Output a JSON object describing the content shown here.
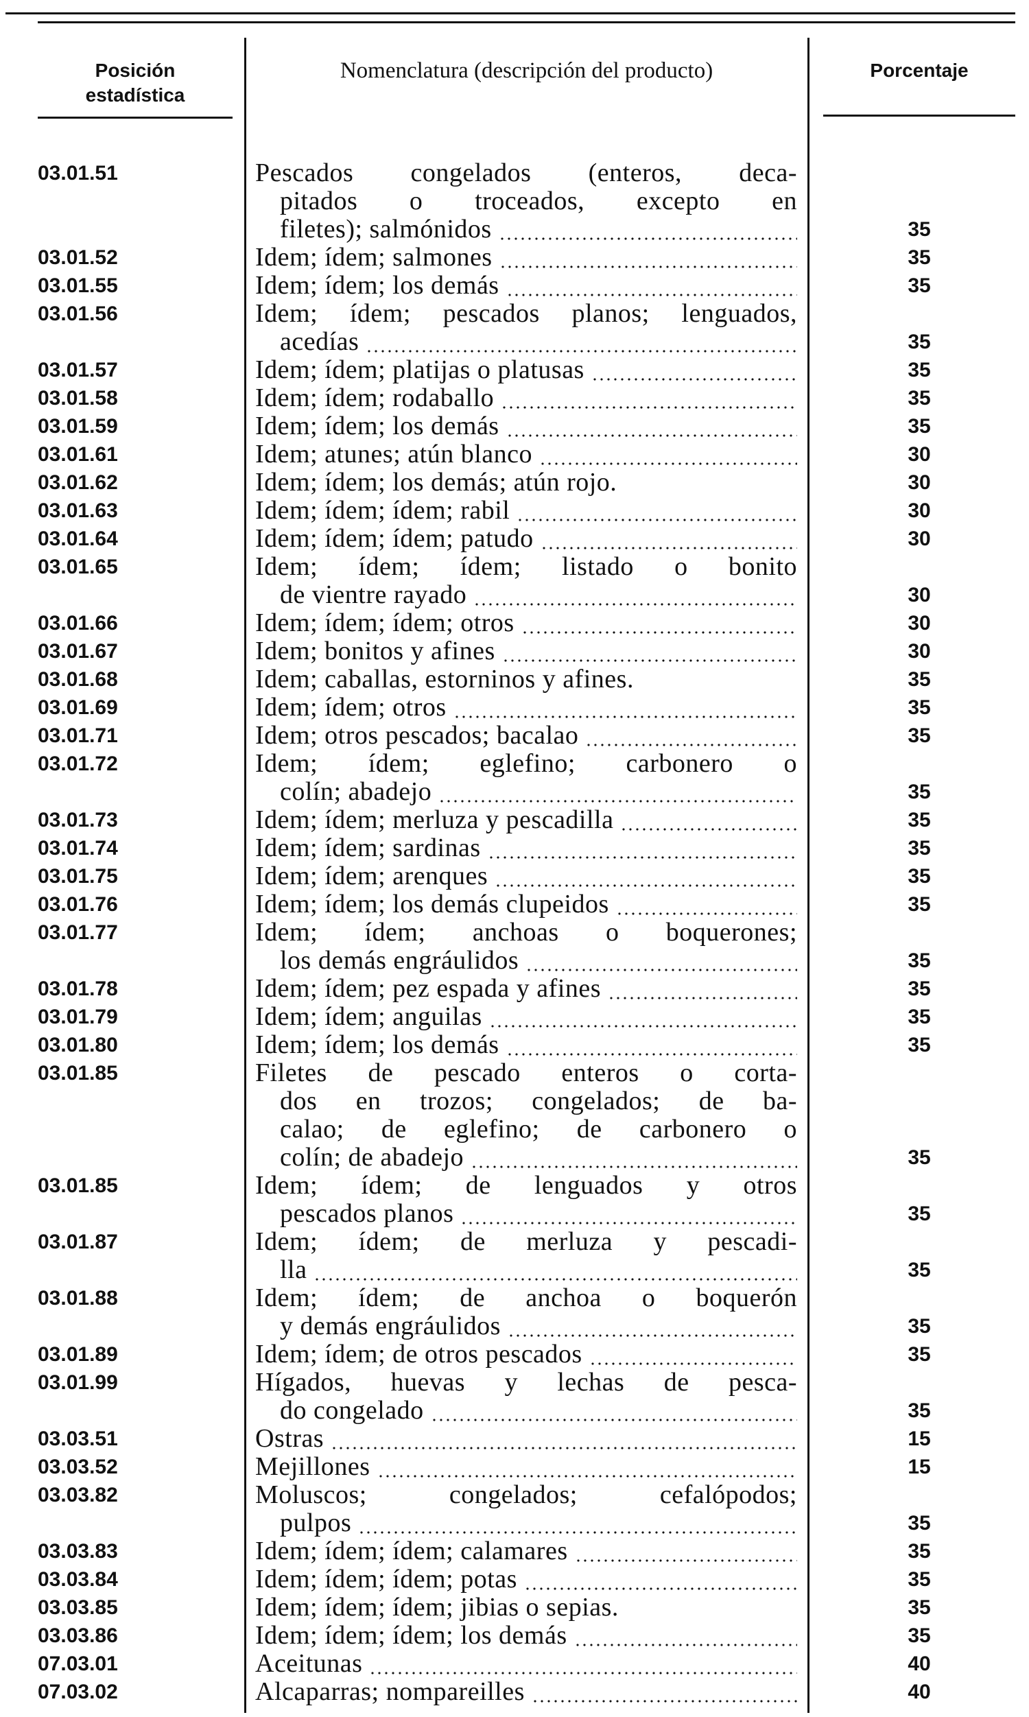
{
  "header": {
    "position": [
      "Posición",
      "estadística"
    ],
    "description": "Nomenclatura (descripción del producto)",
    "percentage": "Porcentaje"
  },
  "rows": [
    {
      "code": "03.01.51",
      "lines": [
        "Pescados congelados (enteros, deca-",
        "pitados o troceados, excepto en",
        "filetes); salmónidos"
      ],
      "percent": 35
    },
    {
      "code": "03.01.52",
      "lines": [
        "Idem; ídem; salmones"
      ],
      "percent": 35
    },
    {
      "code": "03.01.55",
      "lines": [
        "Idem; ídem; los demás"
      ],
      "percent": 35
    },
    {
      "code": "03.01.56",
      "lines": [
        "Idem; ídem; pescados planos; lenguados,",
        "acedías"
      ],
      "percent": 35
    },
    {
      "code": "03.01.57",
      "lines": [
        "Idem; ídem; platijas o platusas"
      ],
      "percent": 35
    },
    {
      "code": "03.01.58",
      "lines": [
        "Idem; ídem; rodaballo"
      ],
      "percent": 35
    },
    {
      "code": "03.01.59",
      "lines": [
        "Idem; ídem; los demás"
      ],
      "percent": 35
    },
    {
      "code": "03.01.61",
      "lines": [
        "Idem; atunes; atún blanco"
      ],
      "percent": 30
    },
    {
      "code": "03.01.62",
      "lines": [
        "Idem; ídem; los demás; atún rojo."
      ],
      "percent": 30
    },
    {
      "code": "03.01.63",
      "lines": [
        "Idem; ídem; ídem; rabil"
      ],
      "percent": 30
    },
    {
      "code": "03.01.64",
      "lines": [
        "Idem; ídem; ídem; patudo"
      ],
      "percent": 30
    },
    {
      "code": "03.01.65",
      "lines": [
        "Idem; ídem; ídem; listado o bonito",
        "de vientre rayado"
      ],
      "percent": 30
    },
    {
      "code": "03.01.66",
      "lines": [
        "Idem; ídem; ídem; otros"
      ],
      "percent": 30
    },
    {
      "code": "03.01.67",
      "lines": [
        "Idem; bonitos y afines"
      ],
      "percent": 30
    },
    {
      "code": "03.01.68",
      "lines": [
        "Idem; caballas, estorninos y afines."
      ],
      "percent": 35
    },
    {
      "code": "03.01.69",
      "lines": [
        "Idem; ídem; otros"
      ],
      "percent": 35
    },
    {
      "code": "03.01.71",
      "lines": [
        "Idem; otros pescados; bacalao"
      ],
      "percent": 35
    },
    {
      "code": "03.01.72",
      "lines": [
        "Idem; ídem; eglefino; carbonero o",
        "colín; abadejo"
      ],
      "percent": 35
    },
    {
      "code": "03.01.73",
      "lines": [
        "Idem; ídem; merluza y pescadilla"
      ],
      "percent": 35
    },
    {
      "code": "03.01.74",
      "lines": [
        "Idem; ídem; sardinas"
      ],
      "percent": 35
    },
    {
      "code": "03.01.75",
      "lines": [
        "Idem; ídem; arenques"
      ],
      "percent": 35
    },
    {
      "code": "03.01.76",
      "lines": [
        "Idem; ídem; los demás clupeidos"
      ],
      "percent": 35
    },
    {
      "code": "03.01.77",
      "lines": [
        "Idem; ídem; anchoas o boquerones;",
        "los demás engráulidos"
      ],
      "percent": 35
    },
    {
      "code": "03.01.78",
      "lines": [
        "Idem; ídem; pez espada y afines"
      ],
      "percent": 35
    },
    {
      "code": "03.01.79",
      "lines": [
        "Idem; ídem; anguilas"
      ],
      "percent": 35
    },
    {
      "code": "03.01.80",
      "lines": [
        "Idem; ídem; los demás"
      ],
      "percent": 35
    },
    {
      "code": "03.01.85",
      "lines": [
        "Filetes de pescado enteros o corta-",
        "dos en trozos; congelados; de ba-",
        "calao; de eglefino; de carbonero o",
        "colín; de abadejo"
      ],
      "percent": 35
    },
    {
      "code": "03.01.85",
      "lines": [
        "Idem; ídem; de lenguados y otros",
        "pescados planos"
      ],
      "percent": 35
    },
    {
      "code": "03.01.87",
      "lines": [
        "Idem; ídem; de merluza y pescadi-",
        "lla"
      ],
      "percent": 35
    },
    {
      "code": "03.01.88",
      "lines": [
        "Idem; ídem; de anchoa o boquerón",
        "y demás engráulidos"
      ],
      "percent": 35
    },
    {
      "code": "03.01.89",
      "lines": [
        "Idem; ídem; de otros pescados"
      ],
      "percent": 35
    },
    {
      "code": "03.01.99",
      "lines": [
        "Hígados, huevas y lechas de pesca-",
        "do congelado"
      ],
      "percent": 35
    },
    {
      "code": "03.03.51",
      "lines": [
        "Ostras"
      ],
      "percent": 15
    },
    {
      "code": "03.03.52",
      "lines": [
        "Mejillones"
      ],
      "percent": 15
    },
    {
      "code": "03.03.82",
      "lines": [
        "Moluscos; congelados; cefalópodos;",
        "pulpos"
      ],
      "percent": 35
    },
    {
      "code": "03.03.83",
      "lines": [
        "Idem; ídem; ídem; calamares"
      ],
      "percent": 35
    },
    {
      "code": "03.03.84",
      "lines": [
        "Idem; ídem; ídem; potas"
      ],
      "percent": 35
    },
    {
      "code": "03.03.85",
      "lines": [
        "Idem; ídem; ídem; jibias o sepias."
      ],
      "percent": 35
    },
    {
      "code": "03.03.86",
      "lines": [
        "Idem; ídem; ídem; los demás"
      ],
      "percent": 35
    },
    {
      "code": "07.03.01",
      "lines": [
        "Aceitunas"
      ],
      "percent": 40
    },
    {
      "code": "07.03.02",
      "lines": [
        "Alcaparras; nompareilles"
      ],
      "percent": 40
    }
  ]
}
